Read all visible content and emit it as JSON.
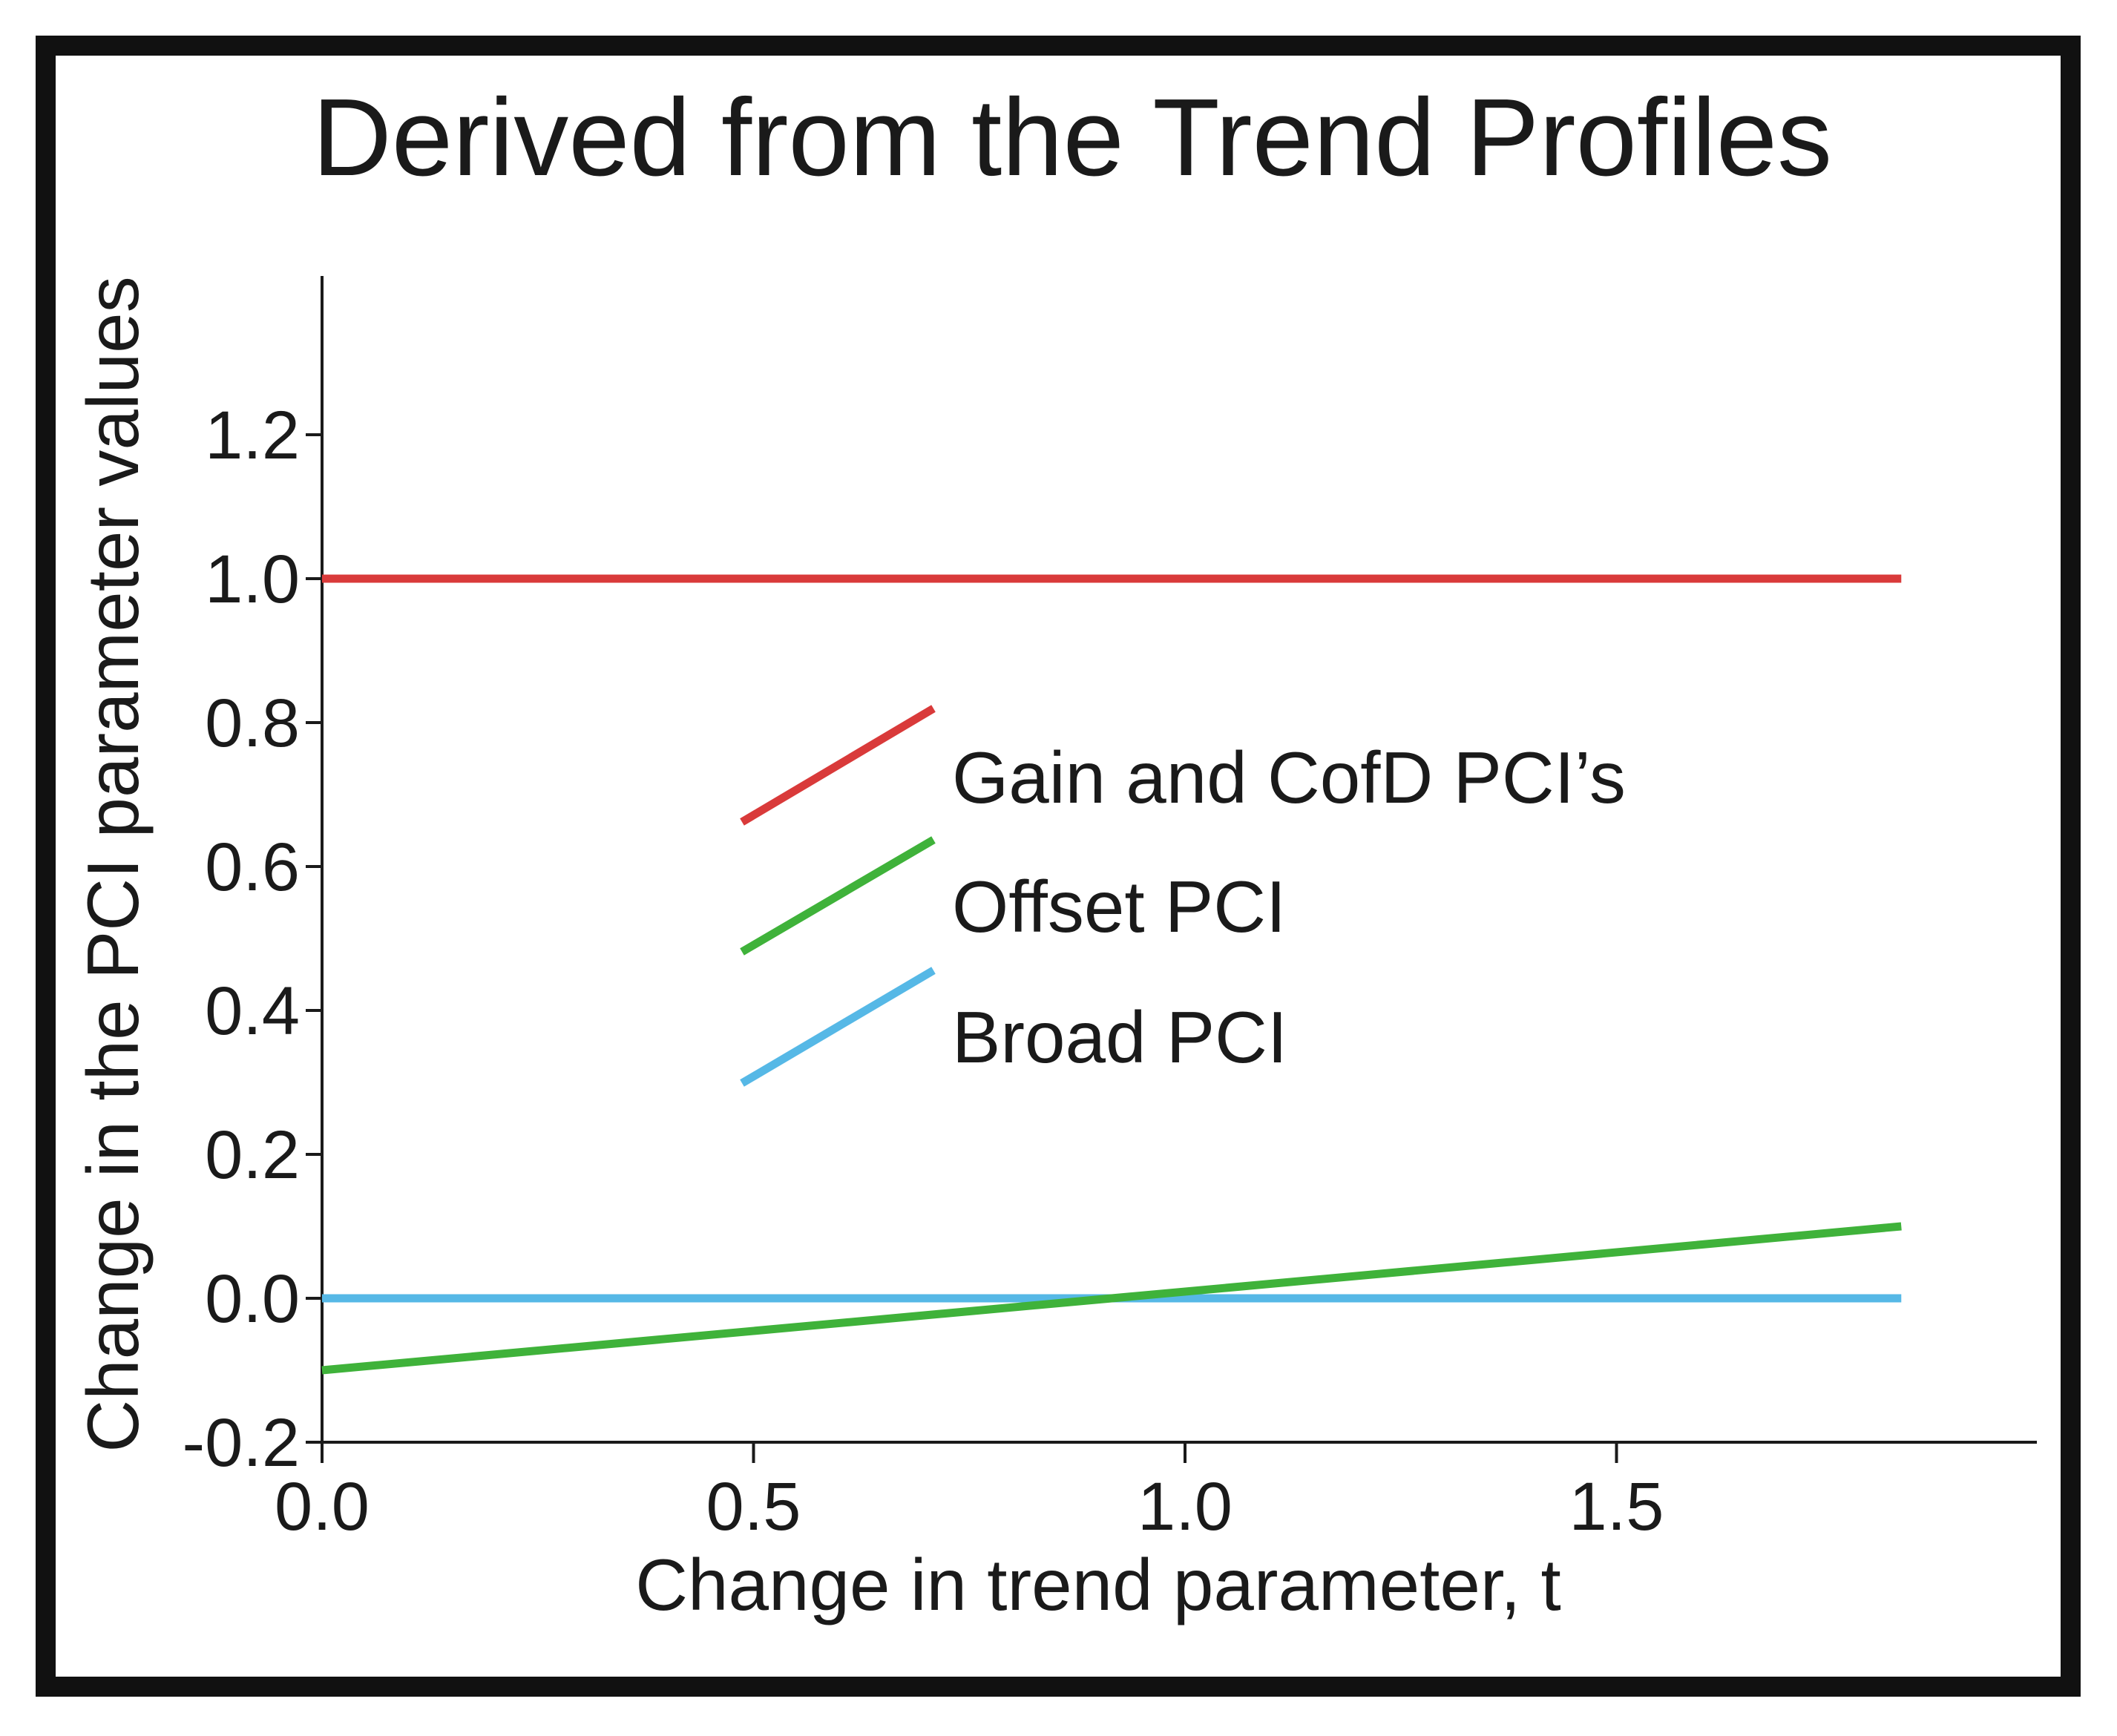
{
  "chart_data": {
    "type": "line",
    "title": "Derived from the Trend Profiles",
    "xlabel": "Change in trend parameter, t",
    "ylabel": "Change in the PCI parameter values",
    "xlim": [
      0.0,
      2.0
    ],
    "ylim": [
      -0.2,
      1.4
    ],
    "xticks": [
      0.0,
      0.5,
      1.0,
      1.5
    ],
    "xtick_labels": [
      "0.0",
      "0.5",
      "1.0",
      "1.5"
    ],
    "yticks": [
      -0.2,
      0.0,
      0.2,
      0.4,
      0.6,
      0.8,
      1.0,
      1.2
    ],
    "ytick_labels": [
      "-0.2",
      "0.0",
      "0.2",
      "0.4",
      "0.6",
      "0.8",
      "1.0",
      "1.2"
    ],
    "legend_position": "center",
    "series": [
      {
        "name": "Gain and CofD PCI’s",
        "color": "#d93a3a",
        "x": [
          0.0,
          1.83
        ],
        "y": [
          1.0,
          1.0
        ]
      },
      {
        "name": "Offset PCI",
        "color": "#3fb23a",
        "x": [
          0.0,
          1.83
        ],
        "y": [
          -0.1,
          0.1
        ]
      },
      {
        "name": "Broad PCI",
        "color": "#56b8e6",
        "x": [
          0.0,
          1.83
        ],
        "y": [
          0.0,
          0.0
        ]
      }
    ]
  }
}
